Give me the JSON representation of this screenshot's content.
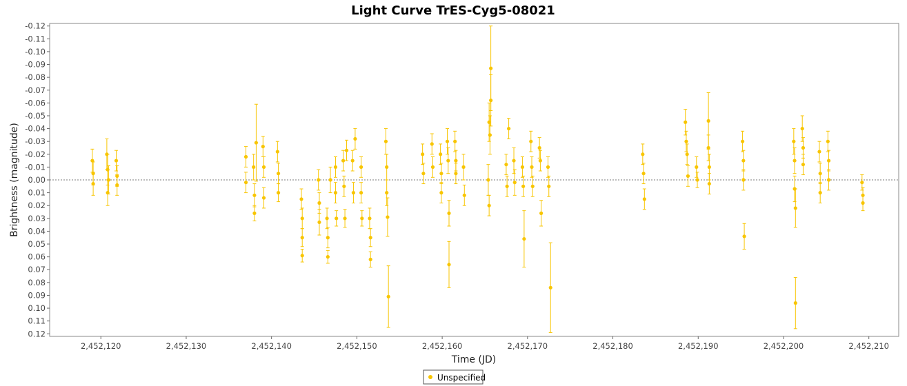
{
  "colors": {
    "series": "#F8C500",
    "zero_line": "#7a7a7a",
    "plot_border": "#888888"
  },
  "chart_data": {
    "type": "scatter",
    "title": "Light Curve TrES-Cyg5-08021",
    "xlabel": "Time (JD)",
    "ylabel": "Brightness (magnitude)",
    "xlim": [
      2452114,
      2452213.5
    ],
    "ylim": [
      -0.122,
      0.122
    ],
    "y_inverted": true,
    "grid": false,
    "zero_line": true,
    "x_ticks": [
      2452120,
      2452130,
      2452140,
      2452150,
      2452160,
      2452170,
      2452180,
      2452190,
      2452200,
      2452210
    ],
    "x_tick_labels": [
      "2,452,120",
      "2,452,130",
      "2,452,140",
      "2,452,150",
      "2,452,160",
      "2,452,170",
      "2,452,180",
      "2,452,190",
      "2,452,200",
      "2,452,210"
    ],
    "y_ticks": [
      -0.12,
      -0.11,
      -0.1,
      -0.09,
      -0.08,
      -0.07,
      -0.06,
      -0.05,
      -0.04,
      -0.03,
      -0.02,
      -0.01,
      0.0,
      0.01,
      0.02,
      0.03,
      0.04,
      0.05,
      0.06,
      0.07,
      0.08,
      0.09,
      0.1,
      0.11,
      0.12
    ],
    "y_tick_labels": [
      "-0.12",
      "-0.11",
      "-0.10",
      "-0.09",
      "-0.08",
      "-0.07",
      "-0.06",
      "-0.05",
      "-0.04",
      "-0.03",
      "-0.02",
      "-0.01",
      "0.00",
      "0.01",
      "0.02",
      "0.03",
      "0.04",
      "0.05",
      "0.06",
      "0.07",
      "0.08",
      "0.09",
      "0.10",
      "0.11",
      "0.12"
    ],
    "legend": {
      "position": "bottom-center",
      "entries": [
        "Unspecified"
      ]
    },
    "series": [
      {
        "name": "Unspecified",
        "points": [
          {
            "x": 2452119.0,
            "y": -0.015,
            "err": 0.009
          },
          {
            "x": 2452119.1,
            "y": -0.005,
            "err": 0.009
          },
          {
            "x": 2452119.1,
            "y": 0.003,
            "err": 0.009
          },
          {
            "x": 2452120.7,
            "y": -0.02,
            "err": 0.012
          },
          {
            "x": 2452120.8,
            "y": -0.008,
            "err": 0.012
          },
          {
            "x": 2452120.8,
            "y": 0.01,
            "err": 0.01
          },
          {
            "x": 2452120.9,
            "y": 0.0,
            "err": 0.011
          },
          {
            "x": 2452121.8,
            "y": -0.015,
            "err": 0.008
          },
          {
            "x": 2452121.9,
            "y": -0.003,
            "err": 0.008
          },
          {
            "x": 2452121.9,
            "y": 0.004,
            "err": 0.008
          },
          {
            "x": 2452137.0,
            "y": -0.018,
            "err": 0.008
          },
          {
            "x": 2452137.0,
            "y": 0.002,
            "err": 0.008
          },
          {
            "x": 2452137.9,
            "y": -0.01,
            "err": 0.01
          },
          {
            "x": 2452138.0,
            "y": 0.012,
            "err": 0.009
          },
          {
            "x": 2452138.0,
            "y": 0.026,
            "err": 0.006
          },
          {
            "x": 2452138.2,
            "y": -0.029,
            "err": 0.03
          },
          {
            "x": 2452139.0,
            "y": -0.026,
            "err": 0.008
          },
          {
            "x": 2452139.1,
            "y": -0.01,
            "err": 0.008
          },
          {
            "x": 2452139.1,
            "y": 0.014,
            "err": 0.008
          },
          {
            "x": 2452140.7,
            "y": -0.022,
            "err": 0.008
          },
          {
            "x": 2452140.8,
            "y": -0.005,
            "err": 0.008
          },
          {
            "x": 2452140.8,
            "y": 0.01,
            "err": 0.007
          },
          {
            "x": 2452143.5,
            "y": 0.015,
            "err": 0.008
          },
          {
            "x": 2452143.6,
            "y": 0.03,
            "err": 0.008
          },
          {
            "x": 2452143.6,
            "y": 0.045,
            "err": 0.007
          },
          {
            "x": 2452143.6,
            "y": 0.059,
            "err": 0.005
          },
          {
            "x": 2452145.5,
            "y": 0.0,
            "err": 0.008
          },
          {
            "x": 2452145.6,
            "y": 0.018,
            "err": 0.008
          },
          {
            "x": 2452145.6,
            "y": 0.033,
            "err": 0.01
          },
          {
            "x": 2452146.5,
            "y": 0.03,
            "err": 0.008
          },
          {
            "x": 2452146.6,
            "y": 0.045,
            "err": 0.008
          },
          {
            "x": 2452146.6,
            "y": 0.06,
            "err": 0.005
          },
          {
            "x": 2452146.9,
            "y": 0.0,
            "err": 0.01
          },
          {
            "x": 2452147.5,
            "y": -0.01,
            "err": 0.008
          },
          {
            "x": 2452147.5,
            "y": 0.01,
            "err": 0.008
          },
          {
            "x": 2452147.6,
            "y": 0.03,
            "err": 0.006
          },
          {
            "x": 2452148.4,
            "y": -0.015,
            "err": 0.008
          },
          {
            "x": 2452148.5,
            "y": 0.005,
            "err": 0.008
          },
          {
            "x": 2452148.6,
            "y": 0.03,
            "err": 0.007
          },
          {
            "x": 2452148.8,
            "y": -0.023,
            "err": 0.008
          },
          {
            "x": 2452149.5,
            "y": -0.015,
            "err": 0.008
          },
          {
            "x": 2452149.6,
            "y": 0.01,
            "err": 0.008
          },
          {
            "x": 2452149.8,
            "y": -0.032,
            "err": 0.008
          },
          {
            "x": 2452150.5,
            "y": -0.01,
            "err": 0.008
          },
          {
            "x": 2452150.5,
            "y": 0.01,
            "err": 0.008
          },
          {
            "x": 2452150.6,
            "y": 0.03,
            "err": 0.006
          },
          {
            "x": 2452151.5,
            "y": 0.03,
            "err": 0.008
          },
          {
            "x": 2452151.6,
            "y": 0.045,
            "err": 0.007
          },
          {
            "x": 2452151.6,
            "y": 0.062,
            "err": 0.006
          },
          {
            "x": 2452153.4,
            "y": -0.03,
            "err": 0.01
          },
          {
            "x": 2452153.5,
            "y": -0.01,
            "err": 0.01
          },
          {
            "x": 2452153.5,
            "y": 0.01,
            "err": 0.01
          },
          {
            "x": 2452153.6,
            "y": 0.029,
            "err": 0.015
          },
          {
            "x": 2452153.7,
            "y": 0.091,
            "err": 0.024
          },
          {
            "x": 2452157.7,
            "y": -0.02,
            "err": 0.008
          },
          {
            "x": 2452157.8,
            "y": -0.005,
            "err": 0.008
          },
          {
            "x": 2452158.8,
            "y": -0.028,
            "err": 0.008
          },
          {
            "x": 2452158.9,
            "y": -0.01,
            "err": 0.008
          },
          {
            "x": 2452159.8,
            "y": -0.02,
            "err": 0.008
          },
          {
            "x": 2452159.9,
            "y": -0.005,
            "err": 0.008
          },
          {
            "x": 2452159.9,
            "y": 0.01,
            "err": 0.008
          },
          {
            "x": 2452160.6,
            "y": -0.03,
            "err": 0.01
          },
          {
            "x": 2452160.7,
            "y": -0.015,
            "err": 0.01
          },
          {
            "x": 2452160.8,
            "y": 0.026,
            "err": 0.01
          },
          {
            "x": 2452160.8,
            "y": 0.066,
            "err": 0.018
          },
          {
            "x": 2452161.5,
            "y": -0.03,
            "err": 0.008
          },
          {
            "x": 2452161.6,
            "y": -0.015,
            "err": 0.008
          },
          {
            "x": 2452161.6,
            "y": -0.005,
            "err": 0.008
          },
          {
            "x": 2452162.5,
            "y": -0.01,
            "err": 0.01
          },
          {
            "x": 2452162.6,
            "y": 0.012,
            "err": 0.008
          },
          {
            "x": 2452165.5,
            "y": -0.045,
            "err": 0.015
          },
          {
            "x": 2452165.6,
            "y": -0.035,
            "err": 0.015
          },
          {
            "x": 2452165.7,
            "y": -0.062,
            "err": 0.02
          },
          {
            "x": 2452165.7,
            "y": -0.087,
            "err": 0.033
          },
          {
            "x": 2452165.4,
            "y": 0.0,
            "err": 0.012
          },
          {
            "x": 2452165.5,
            "y": 0.02,
            "err": 0.008
          },
          {
            "x": 2452167.5,
            "y": -0.012,
            "err": 0.008
          },
          {
            "x": 2452167.6,
            "y": 0.005,
            "err": 0.008
          },
          {
            "x": 2452167.8,
            "y": -0.04,
            "err": 0.008
          },
          {
            "x": 2452168.4,
            "y": -0.015,
            "err": 0.01
          },
          {
            "x": 2452168.5,
            "y": 0.002,
            "err": 0.01
          },
          {
            "x": 2452169.4,
            "y": -0.01,
            "err": 0.008
          },
          {
            "x": 2452169.5,
            "y": 0.005,
            "err": 0.008
          },
          {
            "x": 2452169.6,
            "y": 0.046,
            "err": 0.022
          },
          {
            "x": 2452170.4,
            "y": -0.03,
            "err": 0.008
          },
          {
            "x": 2452170.5,
            "y": -0.01,
            "err": 0.008
          },
          {
            "x": 2452170.6,
            "y": 0.005,
            "err": 0.008
          },
          {
            "x": 2452171.4,
            "y": -0.025,
            "err": 0.008
          },
          {
            "x": 2452171.5,
            "y": -0.015,
            "err": 0.008
          },
          {
            "x": 2452171.6,
            "y": 0.026,
            "err": 0.01
          },
          {
            "x": 2452172.4,
            "y": -0.01,
            "err": 0.008
          },
          {
            "x": 2452172.5,
            "y": 0.005,
            "err": 0.008
          },
          {
            "x": 2452172.7,
            "y": 0.084,
            "err": 0.035
          },
          {
            "x": 2452183.5,
            "y": -0.02,
            "err": 0.008
          },
          {
            "x": 2452183.6,
            "y": -0.005,
            "err": 0.008
          },
          {
            "x": 2452183.7,
            "y": 0.015,
            "err": 0.008
          },
          {
            "x": 2452188.5,
            "y": -0.045,
            "err": 0.01
          },
          {
            "x": 2452188.6,
            "y": -0.03,
            "err": 0.008
          },
          {
            "x": 2452188.7,
            "y": -0.02,
            "err": 0.008
          },
          {
            "x": 2452188.8,
            "y": -0.003,
            "err": 0.008
          },
          {
            "x": 2452189.8,
            "y": -0.01,
            "err": 0.008
          },
          {
            "x": 2452189.9,
            "y": 0.0,
            "err": 0.006
          },
          {
            "x": 2452191.2,
            "y": -0.046,
            "err": 0.022
          },
          {
            "x": 2452191.2,
            "y": -0.025,
            "err": 0.01
          },
          {
            "x": 2452191.3,
            "y": -0.01,
            "err": 0.01
          },
          {
            "x": 2452191.3,
            "y": 0.003,
            "err": 0.008
          },
          {
            "x": 2452195.2,
            "y": -0.03,
            "err": 0.008
          },
          {
            "x": 2452195.3,
            "y": -0.015,
            "err": 0.008
          },
          {
            "x": 2452195.3,
            "y": 0.0,
            "err": 0.008
          },
          {
            "x": 2452195.4,
            "y": 0.044,
            "err": 0.01
          },
          {
            "x": 2452201.2,
            "y": -0.03,
            "err": 0.01
          },
          {
            "x": 2452201.3,
            "y": -0.015,
            "err": 0.01
          },
          {
            "x": 2452201.3,
            "y": 0.007,
            "err": 0.01
          },
          {
            "x": 2452201.4,
            "y": 0.022,
            "err": 0.015
          },
          {
            "x": 2452201.4,
            "y": 0.096,
            "err": 0.02
          },
          {
            "x": 2452202.2,
            "y": -0.04,
            "err": 0.01
          },
          {
            "x": 2452202.3,
            "y": -0.025,
            "err": 0.008
          },
          {
            "x": 2452202.3,
            "y": -0.012,
            "err": 0.008
          },
          {
            "x": 2452204.2,
            "y": -0.022,
            "err": 0.008
          },
          {
            "x": 2452204.3,
            "y": -0.005,
            "err": 0.008
          },
          {
            "x": 2452204.3,
            "y": 0.01,
            "err": 0.008
          },
          {
            "x": 2452205.2,
            "y": -0.03,
            "err": 0.008
          },
          {
            "x": 2452205.3,
            "y": -0.015,
            "err": 0.008
          },
          {
            "x": 2452205.3,
            "y": 0.0,
            "err": 0.008
          },
          {
            "x": 2452209.2,
            "y": 0.002,
            "err": 0.006
          },
          {
            "x": 2452209.3,
            "y": 0.012,
            "err": 0.006
          },
          {
            "x": 2452209.3,
            "y": 0.018,
            "err": 0.006
          }
        ]
      }
    ]
  }
}
